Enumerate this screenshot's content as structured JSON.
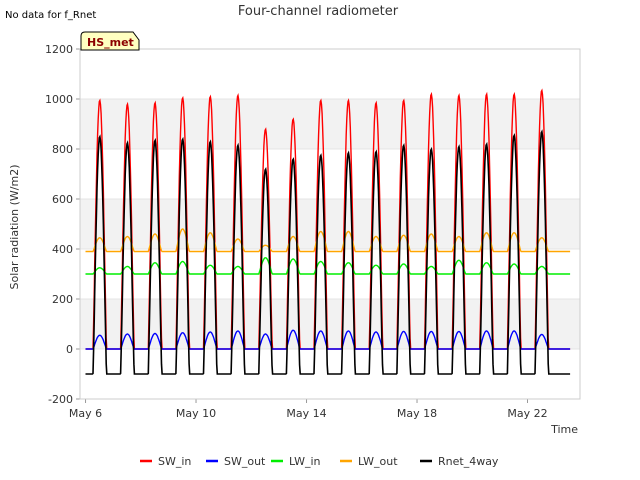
{
  "header": {
    "title": "Four-channel radiometer",
    "note": "No data for f_Rnet",
    "badge": "HS_met"
  },
  "chart_data": {
    "type": "line",
    "title": "Four-channel radiometer",
    "xlabel": "Time",
    "ylabel": "Solar radiation (W/m2)",
    "xlim_days": [
      5.8,
      23.9
    ],
    "ylim": [
      -200,
      1200
    ],
    "yticks": [
      -200,
      0,
      200,
      400,
      600,
      800,
      1000,
      1200
    ],
    "xticks": [
      {
        "day": 6,
        "label": "May 6"
      },
      {
        "day": 10,
        "label": "May 10"
      },
      {
        "day": 14,
        "label": "May 14"
      },
      {
        "day": 18,
        "label": "May 18"
      },
      {
        "day": 22,
        "label": "May 22"
      }
    ],
    "grid": "horizontal bands",
    "legend_position": "bottom",
    "days": [
      "May 6",
      "May 7",
      "May 8",
      "May 9",
      "May 10",
      "May 11",
      "May 12",
      "May 13",
      "May 14",
      "May 15",
      "May 16",
      "May 17",
      "May 18",
      "May 19",
      "May 20",
      "May 21",
      "May 22",
      "May 23"
    ],
    "series": [
      {
        "name": "SW_in",
        "color": "#ff0000",
        "daily_peak": [
          995,
          980,
          985,
          1005,
          1010,
          1015,
          880,
          920,
          995,
          995,
          985,
          995,
          1020,
          1015,
          1020,
          1020,
          1035,
          0
        ],
        "night_value": 0
      },
      {
        "name": "SW_out",
        "color": "#0000ff",
        "daily_peak": [
          55,
          60,
          62,
          65,
          68,
          72,
          60,
          75,
          72,
          72,
          68,
          70,
          70,
          70,
          72,
          72,
          58,
          0
        ],
        "night_value": 0
      },
      {
        "name": "LW_in",
        "color": "#00ee00",
        "daily_peak": [
          325,
          330,
          345,
          350,
          335,
          330,
          365,
          360,
          350,
          345,
          335,
          340,
          330,
          355,
          345,
          340,
          330,
          0
        ],
        "night_value": 300
      },
      {
        "name": "LW_out",
        "color": "#ffa500",
        "daily_peak": [
          445,
          450,
          460,
          480,
          465,
          440,
          415,
          450,
          470,
          470,
          450,
          455,
          460,
          450,
          465,
          465,
          445,
          0
        ],
        "night_value": 390
      },
      {
        "name": "Rnet_4way",
        "color": "#000000",
        "daily_peak": [
          850,
          825,
          835,
          840,
          830,
          815,
          720,
          760,
          775,
          785,
          790,
          815,
          800,
          810,
          820,
          855,
          870,
          0
        ],
        "night_value": -100
      }
    ]
  }
}
